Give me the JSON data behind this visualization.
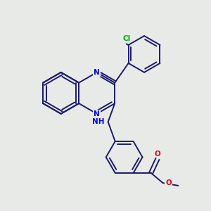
{
  "background_color": "#e8eae8",
  "bond_color": "#1a1a6e",
  "atom_colors": {
    "N": "#0000ee",
    "O": "#ee0000",
    "Cl": "#00aa00",
    "C": "#1a1a6e"
  },
  "figsize": [
    3.0,
    3.0
  ],
  "dpi": 100
}
